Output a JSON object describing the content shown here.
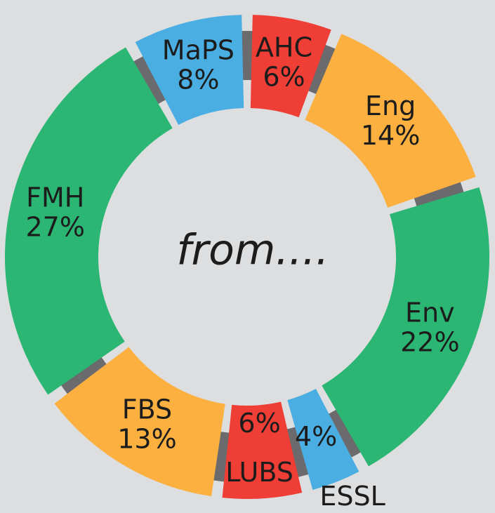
{
  "chart_data": {
    "type": "pie",
    "center_label": "from....",
    "categories": [
      "AHC",
      "Eng",
      "Env",
      "ESSL",
      "LUBS",
      "FBS",
      "FMH",
      "MaPS"
    ],
    "values": [
      6,
      14,
      22,
      4,
      6,
      13,
      27,
      8
    ],
    "value_labels": [
      "6%",
      "14%",
      "22%",
      "4%",
      "6%",
      "13%",
      "27%",
      "8%"
    ],
    "colors": [
      "#ee3e35",
      "#fbb040",
      "#2bb673",
      "#4aaee3",
      "#ee3e35",
      "#fbb040",
      "#2bb673",
      "#4aaee3"
    ]
  }
}
